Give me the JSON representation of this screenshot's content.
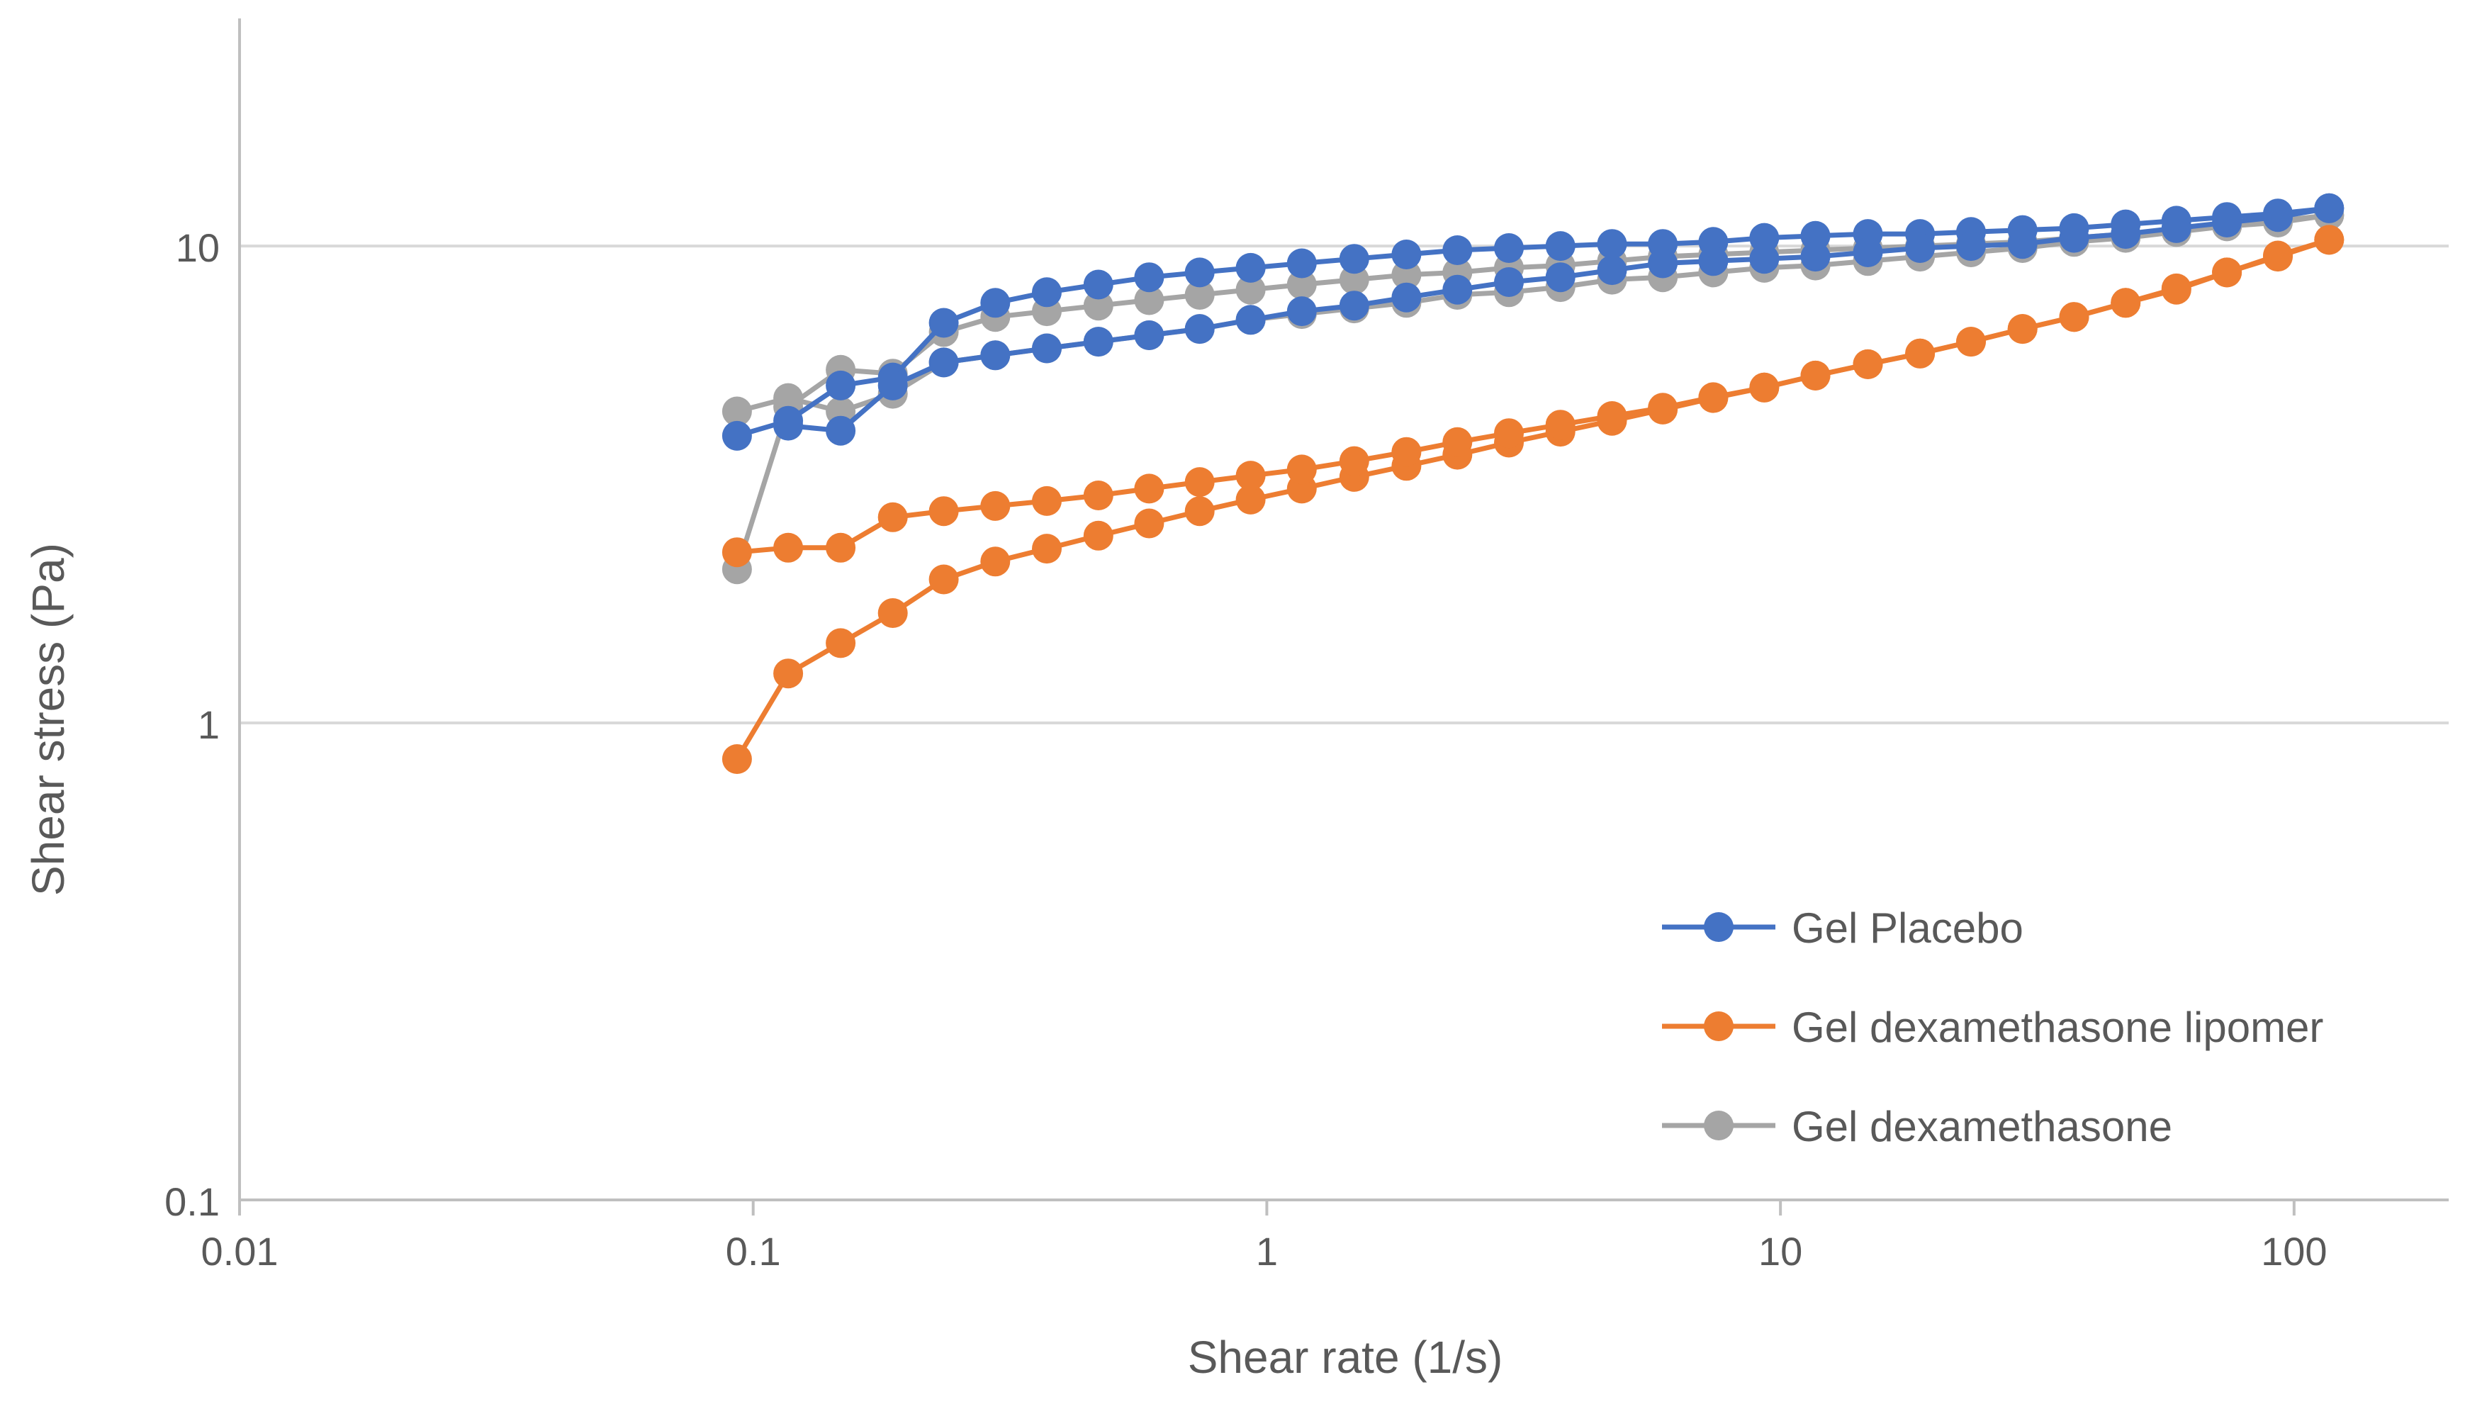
{
  "chart_data": {
    "type": "scatter",
    "title": "",
    "xlabel": "Shear rate (1/s)",
    "ylabel": "Shear stress (Pa)",
    "xscale": "log",
    "yscale": "log",
    "xlim": [
      0.01,
      200
    ],
    "ylim": [
      0.1,
      30
    ],
    "grid": "horizontal major",
    "legend_position": "bottom-right",
    "x_ticks": [
      {
        "value": 0.01,
        "label": "0.01"
      },
      {
        "value": 0.1,
        "label": "0.1"
      },
      {
        "value": 1,
        "label": "1"
      },
      {
        "value": 10,
        "label": "10"
      },
      {
        "value": 100,
        "label": "100"
      }
    ],
    "y_ticks": [
      {
        "value": 0.1,
        "label": "0.1"
      },
      {
        "value": 1,
        "label": "1"
      },
      {
        "value": 10,
        "label": "10"
      }
    ],
    "series": [
      {
        "name": "Gel Placebo",
        "color": "#4472C4",
        "segments": [
          {
            "x": [
              0.093,
              0.117,
              0.148,
              0.187,
              0.235,
              0.296,
              0.373,
              0.47,
              0.59,
              0.74,
              0.93,
              1.17,
              1.48,
              1.87,
              2.35,
              2.96,
              3.73,
              4.7,
              5.9,
              7.4,
              9.3,
              11.7,
              14.8,
              18.7,
              23.5,
              29.6,
              37.3,
              47,
              59,
              74,
              93,
              117
            ],
            "y": [
              4.0,
              4.3,
              5.1,
              5.3,
              6.9,
              7.6,
              8.0,
              8.3,
              8.6,
              8.8,
              9.0,
              9.2,
              9.4,
              9.6,
              9.8,
              9.9,
              10.0,
              10.1,
              10.1,
              10.2,
              10.4,
              10.5,
              10.6,
              10.6,
              10.7,
              10.8,
              10.9,
              11.1,
              11.3,
              11.5,
              11.7,
              12.0
            ]
          },
          {
            "x": [
              117,
              93,
              74,
              59,
              47,
              37.3,
              29.6,
              23.5,
              18.7,
              14.8,
              11.7,
              9.3,
              7.4,
              5.9,
              4.7,
              3.73,
              2.96,
              2.35,
              1.87,
              1.48,
              1.17,
              0.93,
              0.74,
              0.59,
              0.47,
              0.373,
              0.296,
              0.235,
              0.187,
              0.148,
              0.117
            ],
            "y": [
              12.0,
              11.5,
              11.2,
              10.9,
              10.6,
              10.4,
              10.1,
              10.0,
              9.9,
              9.7,
              9.5,
              9.4,
              9.3,
              9.2,
              8.9,
              8.6,
              8.4,
              8.1,
              7.8,
              7.5,
              7.3,
              7.0,
              6.7,
              6.5,
              6.3,
              6.1,
              5.9,
              5.7,
              5.1,
              4.1,
              4.2
            ]
          }
        ]
      },
      {
        "name": "Gel dexamethasone lipomer",
        "color": "#ED7D31",
        "segments": [
          {
            "x": [
              0.093,
              0.117,
              0.148,
              0.187,
              0.235,
              0.296,
              0.373,
              0.47,
              0.59,
              0.74,
              0.93,
              1.17,
              1.48,
              1.87,
              2.35,
              2.96,
              3.73,
              4.7,
              5.9,
              7.4,
              9.3,
              11.7,
              14.8,
              18.7,
              23.5,
              29.6,
              37.3,
              47,
              59,
              74,
              93,
              117
            ],
            "y": [
              0.84,
              1.27,
              1.47,
              1.7,
              2.0,
              2.18,
              2.32,
              2.47,
              2.62,
              2.78,
              2.94,
              3.1,
              3.28,
              3.46,
              3.65,
              3.87,
              4.08,
              4.3,
              4.54,
              4.8,
              5.05,
              5.35,
              5.65,
              5.95,
              6.3,
              6.7,
              7.1,
              7.6,
              8.15,
              8.8,
              9.55,
              10.3
            ]
          },
          {
            "x": [
              117,
              93,
              74,
              59,
              47,
              37.3,
              29.6,
              23.5,
              18.7,
              14.8,
              11.7,
              9.3,
              7.4,
              5.9,
              4.7,
              3.73,
              2.96,
              2.35,
              1.87,
              1.48,
              1.17,
              0.93,
              0.74,
              0.59,
              0.47,
              0.373,
              0.296,
              0.235,
              0.187,
              0.148,
              0.117,
              0.093
            ],
            "y": [
              10.3,
              9.5,
              8.8,
              8.1,
              7.6,
              7.1,
              6.7,
              6.3,
              5.95,
              5.65,
              5.35,
              5.05,
              4.82,
              4.58,
              4.4,
              4.22,
              4.05,
              3.88,
              3.7,
              3.54,
              3.4,
              3.3,
              3.2,
              3.1,
              3.0,
              2.92,
              2.85,
              2.78,
              2.7,
              2.33,
              2.33,
              2.28
            ]
          }
        ]
      },
      {
        "name": "Gel dexamethasone",
        "color": "#A5A5A5",
        "segments": [
          {
            "x": [
              0.093,
              0.117,
              0.148,
              0.187,
              0.235,
              0.296,
              0.373,
              0.47,
              0.59,
              0.74,
              0.93,
              1.17,
              1.48,
              1.87,
              2.35,
              2.96,
              3.73,
              4.7,
              5.9,
              7.4,
              9.3,
              11.7,
              14.8,
              18.7,
              23.5,
              29.6,
              37.3,
              47,
              59,
              74,
              93,
              117
            ],
            "y": [
              2.1,
              4.6,
              5.5,
              5.4,
              6.6,
              7.1,
              7.3,
              7.5,
              7.7,
              7.9,
              8.1,
              8.3,
              8.5,
              8.7,
              8.8,
              9.0,
              9.1,
              9.3,
              9.5,
              9.6,
              9.7,
              9.8,
              9.9,
              10.0,
              10.1,
              10.2,
              10.4,
              10.6,
              10.8,
              11.0,
              11.2,
              11.6
            ]
          },
          {
            "x": [
              117,
              93,
              74,
              59,
              47,
              37.3,
              29.6,
              23.5,
              18.7,
              14.8,
              11.7,
              9.3,
              7.4,
              5.9,
              4.7,
              3.73,
              2.96,
              2.35,
              1.87,
              1.48,
              1.17,
              0.93,
              0.74,
              0.59,
              0.47,
              0.373,
              0.296,
              0.235,
              0.187,
              0.148,
              0.117,
              0.093
            ],
            "y": [
              11.6,
              11.3,
              11.0,
              10.7,
              10.4,
              10.2,
              9.9,
              9.7,
              9.5,
              9.3,
              9.1,
              9.0,
              8.8,
              8.6,
              8.5,
              8.2,
              8.0,
              7.9,
              7.6,
              7.4,
              7.2,
              7.0,
              6.7,
              6.5,
              6.3,
              6.1,
              5.9,
              5.7,
              4.9,
              4.5,
              4.8,
              4.5
            ]
          }
        ]
      }
    ]
  }
}
